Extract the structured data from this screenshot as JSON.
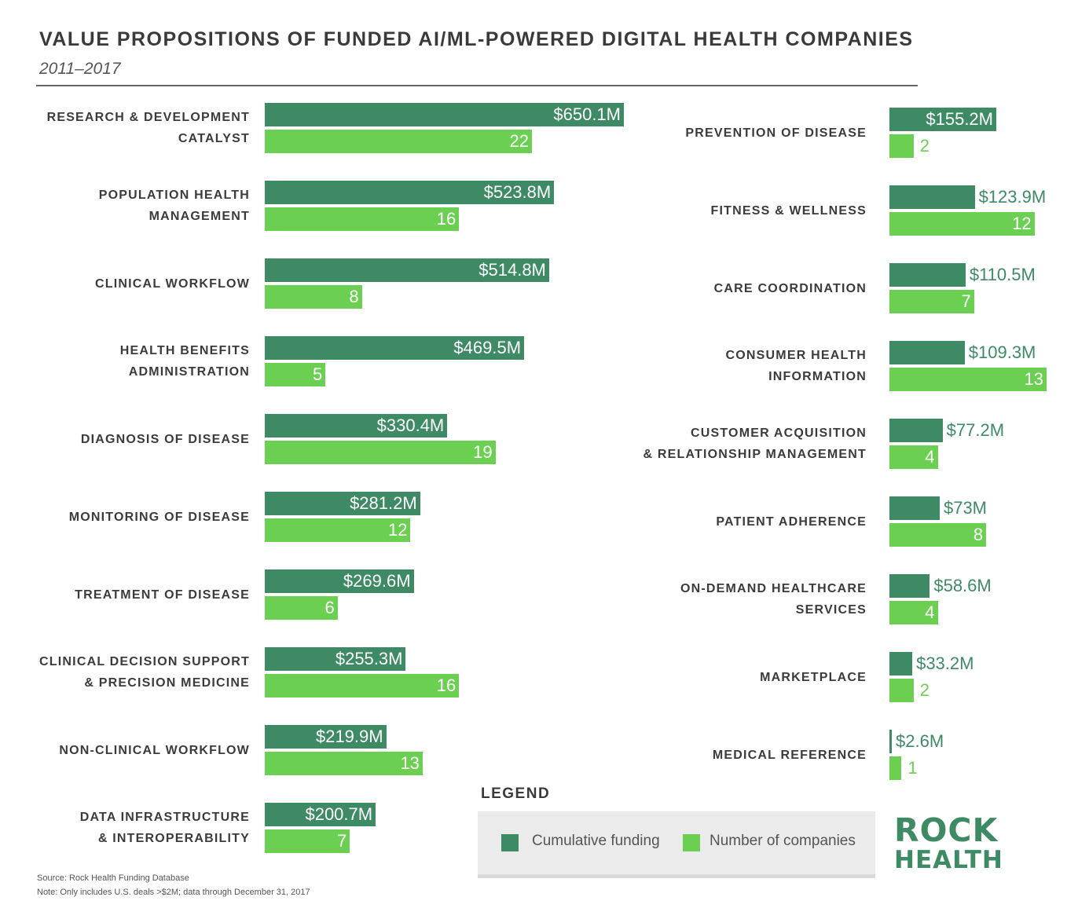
{
  "header": {
    "title": "VALUE PROPOSITIONS OF FUNDED AI/ML-POWERED DIGITAL HEALTH COMPANIES",
    "subtitle": "2011–2017"
  },
  "colors": {
    "cumulative_funding": "#3e8a65",
    "number_of_companies": "#6bd052"
  },
  "chart_data": [
    {
      "type": "bar",
      "orientation": "horizontal",
      "panel": "left",
      "categories": [
        [
          "RESEARCH & DEVELOPMENT",
          "CATALYST"
        ],
        [
          "POPULATION HEALTH",
          "MANAGEMENT"
        ],
        [
          "CLINICAL WORKFLOW"
        ],
        [
          "HEALTH BENEFITS",
          "ADMINISTRATION"
        ],
        [
          "DIAGNOSIS OF DISEASE"
        ],
        [
          "MONITORING OF DISEASE"
        ],
        [
          "TREATMENT OF DISEASE"
        ],
        [
          "CLINICAL DECISION SUPPORT",
          "& PRECISION MEDICINE"
        ],
        [
          "NON-CLINICAL WORKFLOW"
        ],
        [
          "DATA INFRASTRUCTURE",
          "& INTEROPERABILITY"
        ]
      ],
      "series": [
        {
          "name": "Cumulative funding",
          "values": [
            650.1,
            523.8,
            514.8,
            469.5,
            330.4,
            281.2,
            269.6,
            255.3,
            219.9,
            200.7
          ],
          "labels": [
            "$650.1M",
            "$523.8M",
            "$514.8M",
            "$469.5M",
            "$330.4M",
            "$281.2M",
            "$269.6M",
            "$255.3M",
            "$219.9M",
            "$200.7M"
          ]
        },
        {
          "name": "Number of companies",
          "values": [
            22,
            16,
            8,
            5,
            19,
            12,
            6,
            16,
            13,
            7
          ],
          "labels": [
            "22",
            "16",
            "8",
            "5",
            "19",
            "12",
            "6",
            "16",
            "13",
            "7"
          ]
        }
      ]
    },
    {
      "type": "bar",
      "orientation": "horizontal",
      "panel": "right",
      "categories": [
        [
          "PREVENTION OF DISEASE"
        ],
        [
          "FITNESS & WELLNESS"
        ],
        [
          "CARE COORDINATION"
        ],
        [
          "CONSUMER HEALTH",
          "INFORMATION"
        ],
        [
          "CUSTOMER ACQUISITION",
          "& RELATIONSHIP MANAGEMENT"
        ],
        [
          "PATIENT ADHERENCE"
        ],
        [
          "ON-DEMAND HEALTHCARE",
          "SERVICES"
        ],
        [
          "MARKETPLACE"
        ],
        [
          "MEDICAL REFERENCE"
        ]
      ],
      "series": [
        {
          "name": "Cumulative funding",
          "values": [
            155.2,
            123.9,
            110.5,
            109.3,
            77.2,
            73,
            58.6,
            33.2,
            2.6
          ],
          "labels": [
            "$155.2M",
            "$123.9M",
            "$110.5M",
            "$109.3M",
            "$77.2M",
            "$73M",
            "$58.6M",
            "$33.2M",
            "$2.6M"
          ]
        },
        {
          "name": "Number of companies",
          "values": [
            2,
            12,
            7,
            13,
            4,
            8,
            4,
            2,
            1
          ],
          "labels": [
            "2",
            "12",
            "7",
            "13",
            "4",
            "8",
            "4",
            "2",
            "1"
          ]
        }
      ]
    }
  ],
  "legend": {
    "title": "LEGEND",
    "funding_label": "Cumulative funding",
    "companies_label": "Number of companies"
  },
  "logo": {
    "line1": "ROCK",
    "line2": "HEALTH"
  },
  "footer": {
    "source": "Source: Rock Health Funding Database",
    "note": "Note: Only includes U.S. deals >$2M; data through December 31, 2017"
  }
}
